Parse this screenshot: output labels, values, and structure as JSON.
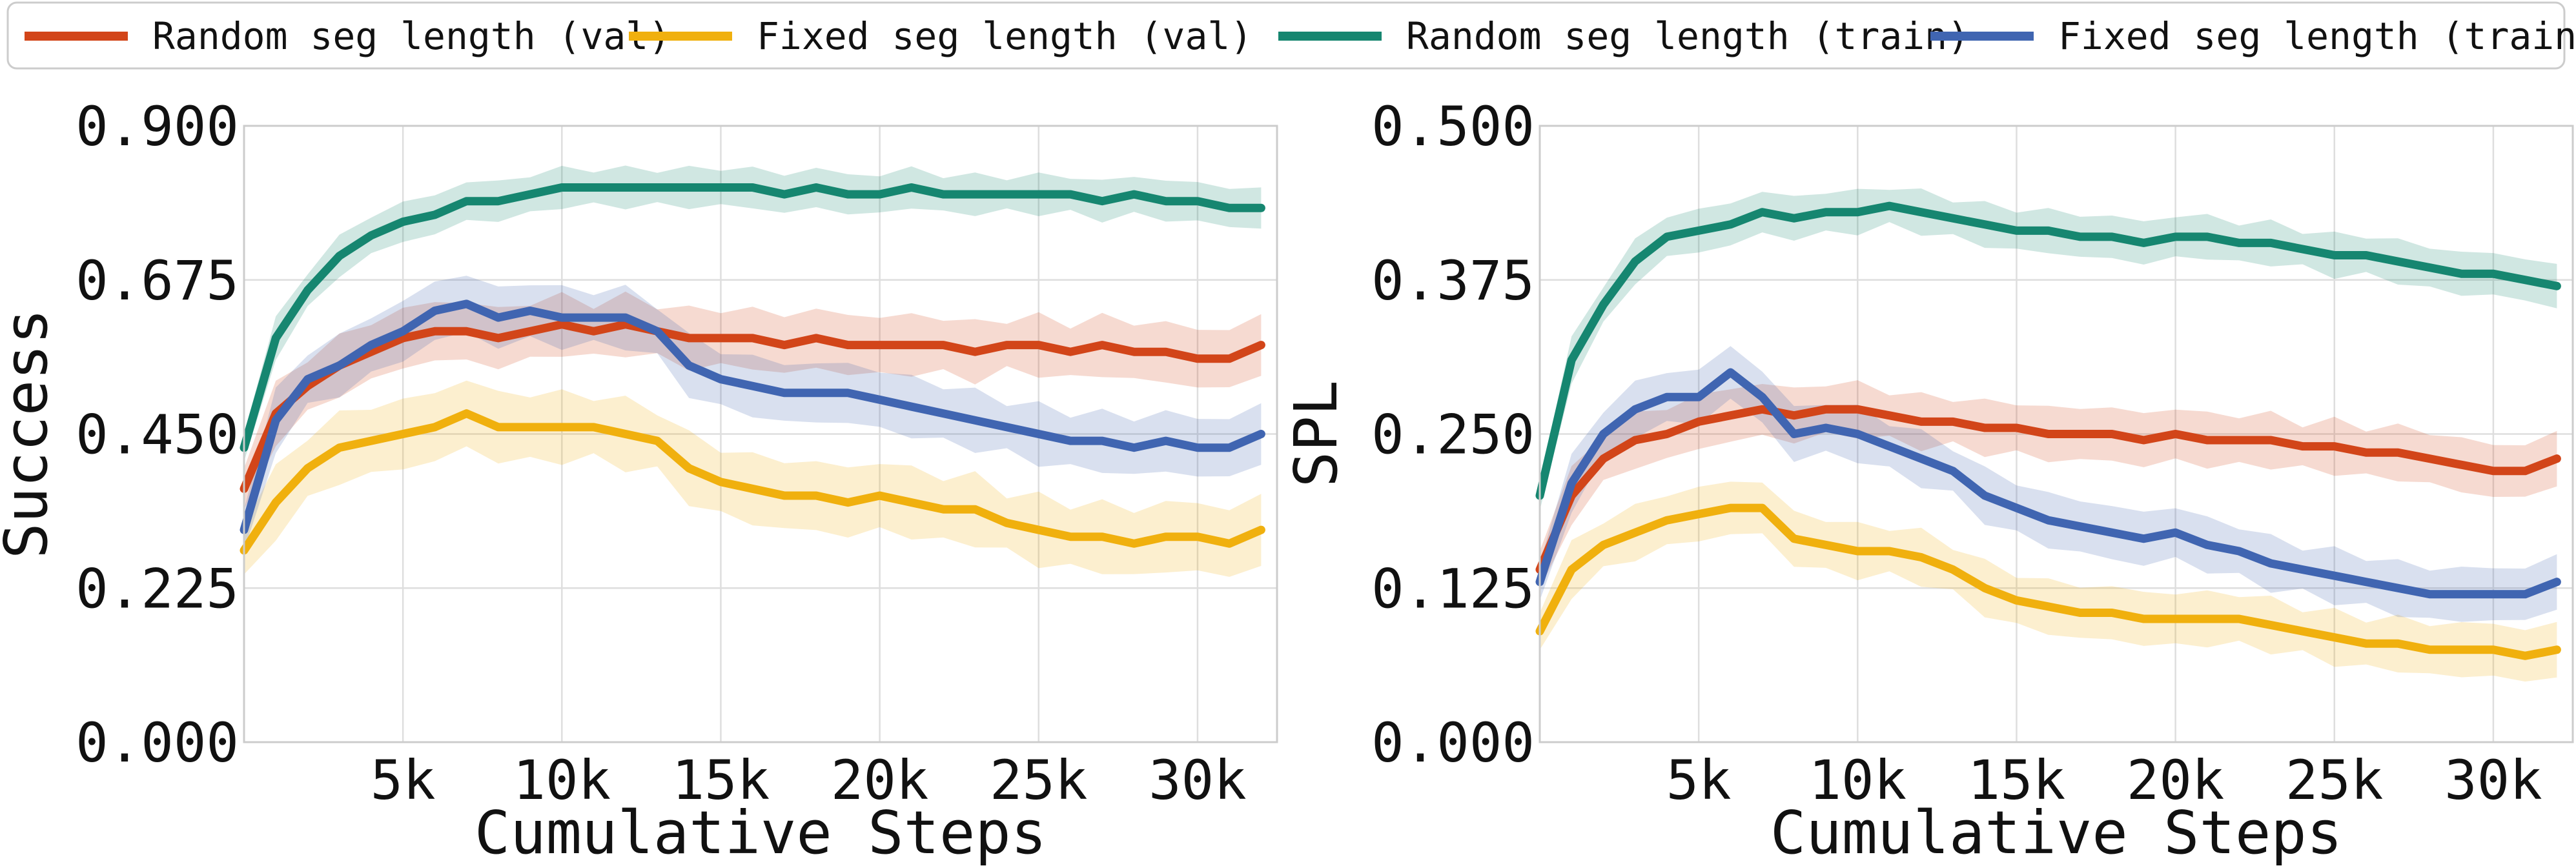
{
  "chart_data": {
    "type": "line",
    "legend": {
      "placement": "top",
      "entries": [
        {
          "label": "Random seg length (val)",
          "color": "#d24519"
        },
        {
          "label": "Fixed seg length (val)",
          "color": "#f0b00e"
        },
        {
          "label": "Random seg length (train)",
          "color": "#168670"
        },
        {
          "label": "Fixed seg length (train)",
          "color": "#4065b1"
        }
      ]
    },
    "panels": [
      {
        "id": "success",
        "xlabel": "Cumulative Steps",
        "ylabel": "Success",
        "xlim": [
          0,
          32500
        ],
        "ylim": [
          0.0,
          0.9
        ],
        "xticks": [
          5000,
          10000,
          15000,
          20000,
          25000,
          30000
        ],
        "xtick_labels": [
          "5k",
          "10k",
          "15k",
          "20k",
          "25k",
          "30k"
        ],
        "yticks": [
          0.0,
          0.225,
          0.45,
          0.675,
          0.9
        ],
        "ytick_labels": [
          "0.000",
          "0.225",
          "0.450",
          "0.675",
          "0.900"
        ],
        "grid": true,
        "series": [
          {
            "name": "Random seg length (val)",
            "color": "#d24519",
            "band": 0.03,
            "x": [
              0,
              1000,
              2000,
              3000,
              4000,
              5000,
              6000,
              7000,
              8000,
              9000,
              10000,
              11000,
              12000,
              13000,
              14000,
              15000,
              16000,
              17000,
              18000,
              19000,
              20000,
              21000,
              22000,
              23000,
              24000,
              25000,
              26000,
              27000,
              28000,
              29000,
              30000,
              31000,
              32000
            ],
            "y": [
              0.37,
              0.48,
              0.52,
              0.55,
              0.57,
              0.59,
              0.6,
              0.6,
              0.59,
              0.6,
              0.61,
              0.6,
              0.61,
              0.6,
              0.59,
              0.59,
              0.59,
              0.58,
              0.59,
              0.58,
              0.58,
              0.58,
              0.58,
              0.57,
              0.58,
              0.58,
              0.57,
              0.58,
              0.57,
              0.57,
              0.56,
              0.56,
              0.58
            ]
          },
          {
            "name": "Fixed seg length (val)",
            "color": "#f0b00e",
            "band": 0.035,
            "x": [
              0,
              1000,
              2000,
              3000,
              4000,
              5000,
              6000,
              7000,
              8000,
              9000,
              10000,
              11000,
              12000,
              13000,
              14000,
              15000,
              16000,
              17000,
              18000,
              19000,
              20000,
              21000,
              22000,
              23000,
              24000,
              25000,
              26000,
              27000,
              28000,
              29000,
              30000,
              31000,
              32000
            ],
            "y": [
              0.28,
              0.35,
              0.4,
              0.43,
              0.44,
              0.45,
              0.46,
              0.48,
              0.46,
              0.46,
              0.46,
              0.46,
              0.45,
              0.44,
              0.4,
              0.38,
              0.37,
              0.36,
              0.36,
              0.35,
              0.36,
              0.35,
              0.34,
              0.34,
              0.32,
              0.31,
              0.3,
              0.3,
              0.29,
              0.3,
              0.3,
              0.29,
              0.31
            ]
          },
          {
            "name": "Random seg length (train)",
            "color": "#168670",
            "band": 0.02,
            "x": [
              0,
              1000,
              2000,
              3000,
              4000,
              5000,
              6000,
              7000,
              8000,
              9000,
              10000,
              11000,
              12000,
              13000,
              14000,
              15000,
              16000,
              17000,
              18000,
              19000,
              20000,
              21000,
              22000,
              23000,
              24000,
              25000,
              26000,
              27000,
              28000,
              29000,
              30000,
              31000,
              32000
            ],
            "y": [
              0.43,
              0.59,
              0.66,
              0.71,
              0.74,
              0.76,
              0.77,
              0.79,
              0.79,
              0.8,
              0.81,
              0.81,
              0.81,
              0.81,
              0.81,
              0.81,
              0.81,
              0.8,
              0.81,
              0.8,
              0.8,
              0.81,
              0.8,
              0.8,
              0.8,
              0.8,
              0.8,
              0.79,
              0.8,
              0.79,
              0.79,
              0.78,
              0.78
            ]
          },
          {
            "name": "Fixed seg length (train)",
            "color": "#4065b1",
            "band": 0.03,
            "x": [
              0,
              1000,
              2000,
              3000,
              4000,
              5000,
              6000,
              7000,
              8000,
              9000,
              10000,
              11000,
              12000,
              13000,
              14000,
              15000,
              16000,
              17000,
              18000,
              19000,
              20000,
              21000,
              22000,
              23000,
              24000,
              25000,
              26000,
              27000,
              28000,
              29000,
              30000,
              31000,
              32000
            ],
            "y": [
              0.31,
              0.47,
              0.53,
              0.55,
              0.58,
              0.6,
              0.63,
              0.64,
              0.62,
              0.63,
              0.62,
              0.62,
              0.62,
              0.6,
              0.55,
              0.53,
              0.52,
              0.51,
              0.51,
              0.51,
              0.5,
              0.49,
              0.48,
              0.47,
              0.46,
              0.45,
              0.44,
              0.44,
              0.43,
              0.44,
              0.43,
              0.43,
              0.45
            ]
          }
        ]
      },
      {
        "id": "spl",
        "xlabel": "Cumulative Steps",
        "ylabel": "SPL",
        "xlim": [
          0,
          32500
        ],
        "ylim": [
          0.0,
          0.5
        ],
        "xticks": [
          5000,
          10000,
          15000,
          20000,
          25000,
          30000
        ],
        "xtick_labels": [
          "5k",
          "10k",
          "15k",
          "20k",
          "25k",
          "30k"
        ],
        "yticks": [
          0.0,
          0.125,
          0.25,
          0.375,
          0.5
        ],
        "ytick_labels": [
          "0.000",
          "0.125",
          "0.250",
          "0.375",
          "0.500"
        ],
        "grid": true,
        "series": [
          {
            "name": "Random seg length (val)",
            "color": "#d24519",
            "band": 0.015,
            "x": [
              0,
              1000,
              2000,
              3000,
              4000,
              5000,
              6000,
              7000,
              8000,
              9000,
              10000,
              11000,
              12000,
              13000,
              14000,
              15000,
              16000,
              17000,
              18000,
              19000,
              20000,
              21000,
              22000,
              23000,
              24000,
              25000,
              26000,
              27000,
              28000,
              29000,
              30000,
              31000,
              32000
            ],
            "y": [
              0.14,
              0.2,
              0.23,
              0.245,
              0.25,
              0.26,
              0.265,
              0.27,
              0.265,
              0.27,
              0.27,
              0.265,
              0.26,
              0.26,
              0.255,
              0.255,
              0.25,
              0.25,
              0.25,
              0.245,
              0.25,
              0.245,
              0.245,
              0.245,
              0.24,
              0.24,
              0.235,
              0.235,
              0.23,
              0.225,
              0.22,
              0.22,
              0.23
            ]
          },
          {
            "name": "Fixed seg length (val)",
            "color": "#f0b00e",
            "band": 0.015,
            "x": [
              0,
              1000,
              2000,
              3000,
              4000,
              5000,
              6000,
              7000,
              8000,
              9000,
              10000,
              11000,
              12000,
              13000,
              14000,
              15000,
              16000,
              17000,
              18000,
              19000,
              20000,
              21000,
              22000,
              23000,
              24000,
              25000,
              26000,
              27000,
              28000,
              29000,
              30000,
              31000,
              32000
            ],
            "y": [
              0.09,
              0.14,
              0.16,
              0.17,
              0.18,
              0.185,
              0.19,
              0.19,
              0.165,
              0.16,
              0.155,
              0.155,
              0.15,
              0.14,
              0.125,
              0.115,
              0.11,
              0.105,
              0.105,
              0.1,
              0.1,
              0.1,
              0.1,
              0.095,
              0.09,
              0.085,
              0.08,
              0.08,
              0.075,
              0.075,
              0.075,
              0.07,
              0.075
            ]
          },
          {
            "name": "Random seg length (train)",
            "color": "#168670",
            "band": 0.012,
            "x": [
              0,
              1000,
              2000,
              3000,
              4000,
              5000,
              6000,
              7000,
              8000,
              9000,
              10000,
              11000,
              12000,
              13000,
              14000,
              15000,
              16000,
              17000,
              18000,
              19000,
              20000,
              21000,
              22000,
              23000,
              24000,
              25000,
              26000,
              27000,
              28000,
              29000,
              30000,
              31000,
              32000
            ],
            "y": [
              0.2,
              0.31,
              0.355,
              0.39,
              0.41,
              0.415,
              0.42,
              0.43,
              0.425,
              0.43,
              0.43,
              0.435,
              0.43,
              0.425,
              0.42,
              0.415,
              0.415,
              0.41,
              0.41,
              0.405,
              0.41,
              0.41,
              0.405,
              0.405,
              0.4,
              0.395,
              0.395,
              0.39,
              0.385,
              0.38,
              0.38,
              0.375,
              0.37
            ]
          },
          {
            "name": "Fixed seg length (train)",
            "color": "#4065b1",
            "band": 0.015,
            "x": [
              0,
              1000,
              2000,
              3000,
              4000,
              5000,
              6000,
              7000,
              8000,
              9000,
              10000,
              11000,
              12000,
              13000,
              14000,
              15000,
              16000,
              17000,
              18000,
              19000,
              20000,
              21000,
              22000,
              23000,
              24000,
              25000,
              26000,
              27000,
              28000,
              29000,
              30000,
              31000,
              32000
            ],
            "y": [
              0.13,
              0.21,
              0.25,
              0.27,
              0.28,
              0.28,
              0.3,
              0.28,
              0.25,
              0.255,
              0.25,
              0.24,
              0.23,
              0.22,
              0.2,
              0.19,
              0.18,
              0.175,
              0.17,
              0.165,
              0.17,
              0.16,
              0.155,
              0.145,
              0.14,
              0.135,
              0.13,
              0.125,
              0.12,
              0.12,
              0.12,
              0.12,
              0.13
            ]
          }
        ]
      }
    ]
  }
}
